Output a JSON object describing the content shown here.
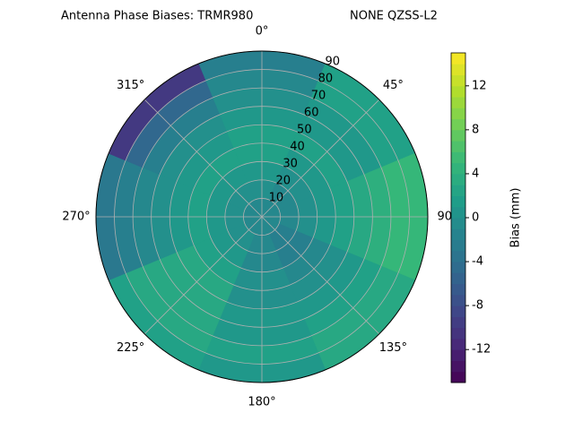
{
  "chart_data": {
    "type": "polar-contour",
    "title": "Antenna Phase Biases: TRMR980",
    "subtitle": "NONE QZSS-L2",
    "colorbar_label": "Bias (mm)",
    "clim": [
      -15,
      15
    ],
    "cticks": [
      -12,
      -8,
      -4,
      0,
      4,
      8,
      12
    ],
    "rlim": [
      0,
      90
    ],
    "rticks": [
      10,
      20,
      30,
      40,
      50,
      60,
      70,
      80,
      90
    ],
    "thetaticks": [
      {
        "value": 0,
        "label": "0°"
      },
      {
        "value": 45,
        "label": "45°"
      },
      {
        "value": 90,
        "label": "90°"
      },
      {
        "value": 135,
        "label": "135°"
      },
      {
        "value": 180,
        "label": "180°"
      },
      {
        "value": 225,
        "label": "225°"
      },
      {
        "value": 270,
        "label": "270°"
      },
      {
        "value": 315,
        "label": "315°"
      }
    ],
    "azimuths": [
      0,
      45,
      90,
      135,
      180,
      225,
      270,
      315
    ],
    "zenith_edges": [
      0,
      10,
      20,
      30,
      40,
      50,
      60,
      70,
      80,
      90
    ],
    "values": [
      [
        -1,
        -1,
        -1,
        -1,
        -1,
        -1,
        -1,
        -1
      ],
      [
        0,
        -1,
        -1,
        -2,
        -1,
        0,
        0,
        0
      ],
      [
        1,
        0,
        0,
        -2,
        -1,
        1,
        1,
        1
      ],
      [
        2,
        1,
        1,
        -1,
        0,
        2,
        2,
        2
      ],
      [
        2,
        2,
        2,
        0,
        0,
        3,
        1,
        1
      ],
      [
        1,
        1,
        3,
        1,
        1,
        3,
        0,
        0
      ],
      [
        0,
        1,
        4,
        2,
        1,
        3,
        -1,
        -2
      ],
      [
        -1,
        2,
        5,
        3,
        2,
        3,
        -2,
        -5
      ],
      [
        -2,
        2,
        5,
        3,
        1,
        2,
        -3,
        -10
      ]
    ],
    "grid": true
  }
}
